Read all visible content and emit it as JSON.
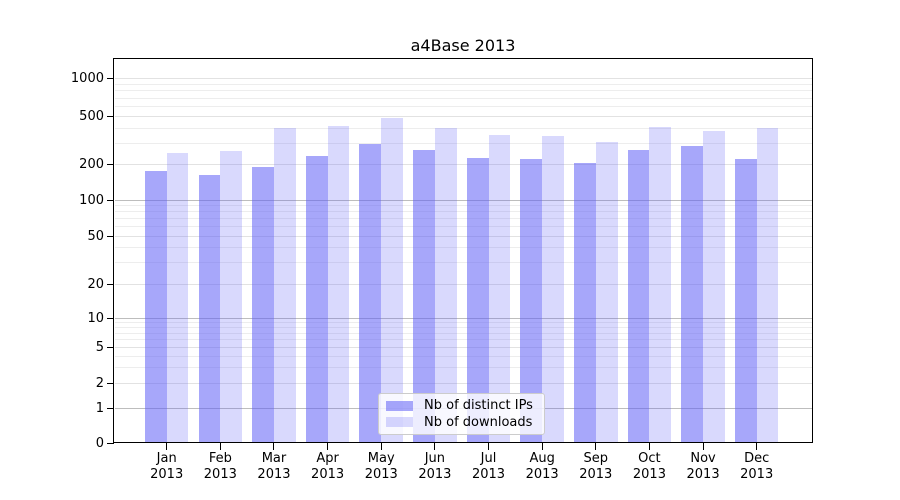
{
  "title": "a4Base 2013",
  "legend": {
    "items": [
      {
        "label": "Nb of distinct IPs"
      },
      {
        "label": "Nb of downloads"
      }
    ],
    "position": "lower center inside plot"
  },
  "chart_data": {
    "type": "bar",
    "title": "a4Base 2013",
    "categories": [
      "Jan 2013",
      "Feb 2013",
      "Mar 2013",
      "Apr 2013",
      "May 2013",
      "Jun 2013",
      "Jul 2013",
      "Aug 2013",
      "Sep 2013",
      "Oct 2013",
      "Nov 2013",
      "Dec 2013"
    ],
    "x_tick_line1": [
      "Jan",
      "Feb",
      "Mar",
      "Apr",
      "May",
      "Jun",
      "Jul",
      "Aug",
      "Sep",
      "Oct",
      "Nov",
      "Dec"
    ],
    "x_tick_line2": "2013",
    "series": [
      {
        "name": "Nb of distinct IPs",
        "values": [
          175,
          162,
          190,
          235,
          295,
          265,
          225,
          220,
          205,
          265,
          285,
          220
        ]
      },
      {
        "name": "Nb of downloads",
        "values": [
          250,
          258,
          405,
          420,
          490,
          400,
          350,
          345,
          305,
          410,
          380,
          400
        ]
      }
    ],
    "y_ticks": [
      0,
      1,
      2,
      5,
      10,
      20,
      50,
      100,
      200,
      500,
      1000
    ],
    "yscale": "log-like (symlog with 0 baseline)",
    "ylim": [
      0,
      1300
    ],
    "xlabel": "",
    "ylabel": "",
    "grid": "horizontal major and minor gridlines",
    "legend_position": "lower center"
  },
  "colors": {
    "bar_distinct_ips": "rgba(95,95,245,0.55)",
    "bar_downloads": "rgba(95,95,245,0.24)",
    "grid_major": "#bdbdbd",
    "grid_minor_labeled": "#e2e2e2",
    "grid_minor": "#ededed",
    "axis": "#000000",
    "legend_border": "#cccccc"
  }
}
